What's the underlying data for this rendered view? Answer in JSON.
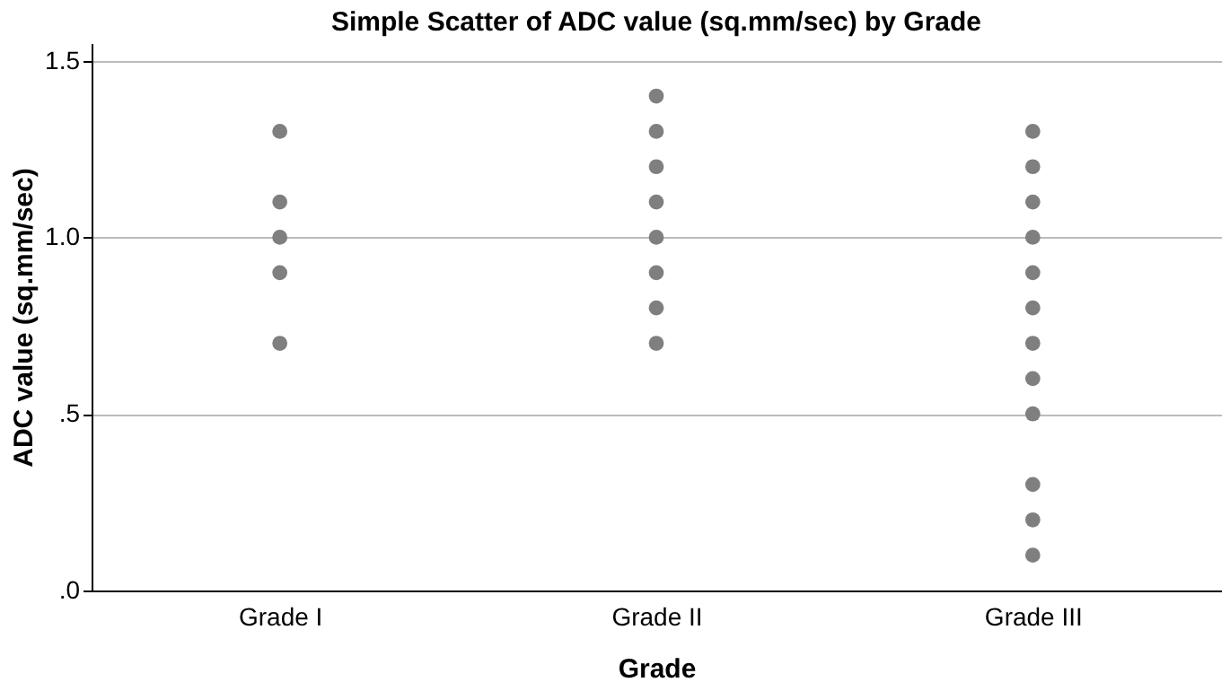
{
  "chart_data": {
    "type": "scatter",
    "title": "Simple Scatter of ADC value (sq.mm/sec) by Grade",
    "xlabel": "Grade",
    "ylabel": "ADC value (sq.mm/sec)",
    "categories": [
      "Grade I",
      "Grade II",
      "Grade III"
    ],
    "series": [
      {
        "color": "#7f7f7f",
        "x": [
          "Grade I",
          "Grade I",
          "Grade I",
          "Grade I",
          "Grade I",
          "Grade II",
          "Grade II",
          "Grade II",
          "Grade II",
          "Grade II",
          "Grade II",
          "Grade II",
          "Grade II",
          "Grade III",
          "Grade III",
          "Grade III",
          "Grade III",
          "Grade III",
          "Grade III",
          "Grade III",
          "Grade III",
          "Grade III",
          "Grade III",
          "Grade III",
          "Grade III"
        ],
        "values": [
          1.3,
          1.1,
          1.0,
          0.9,
          0.7,
          1.4,
          1.3,
          1.2,
          1.1,
          1.0,
          0.9,
          0.8,
          0.7,
          1.3,
          1.2,
          1.1,
          1.0,
          0.9,
          0.8,
          0.7,
          0.6,
          0.5,
          0.3,
          0.2,
          0.1
        ]
      }
    ],
    "ylim": [
      0,
      1.55
    ],
    "yticks": [
      {
        "value": 0,
        "label": ".0"
      },
      {
        "value": 0.5,
        "label": ".5"
      },
      {
        "value": 1.0,
        "label": "1.0"
      },
      {
        "value": 1.5,
        "label": "1.5"
      }
    ],
    "grid": "y",
    "marker": "circle"
  }
}
